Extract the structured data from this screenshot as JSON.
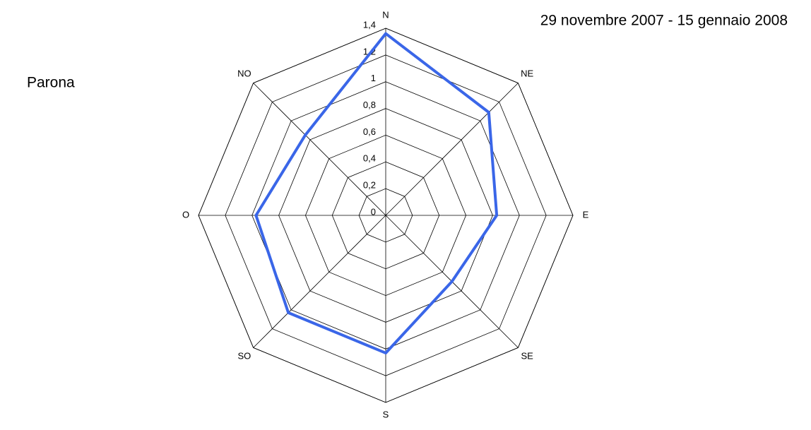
{
  "chart_data": {
    "type": "radar",
    "title": "29 novembre 2007 - 15 gennaio 2008",
    "station": "Parona",
    "categories": [
      "N",
      "NE",
      "E",
      "SE",
      "S",
      "SO",
      "O",
      "NO"
    ],
    "series": [
      {
        "color": "#3a66e8",
        "values": [
          1.36,
          1.09,
          0.83,
          0.7,
          1.03,
          1.03,
          0.97,
          0.85
        ]
      }
    ],
    "ylim": [
      0,
      1.4
    ],
    "yticks": [
      0,
      {
        "value": 0.2,
        "label": "0,2"
      },
      {
        "value": 0.4,
        "label": "0,4"
      },
      {
        "value": 0.6,
        "label": "0,6"
      },
      {
        "value": 0.8,
        "label": "0,8"
      },
      1,
      {
        "value": 1.2,
        "label": "1,2"
      },
      {
        "value": 1.4,
        "label": "1,4"
      }
    ],
    "grid": true
  }
}
